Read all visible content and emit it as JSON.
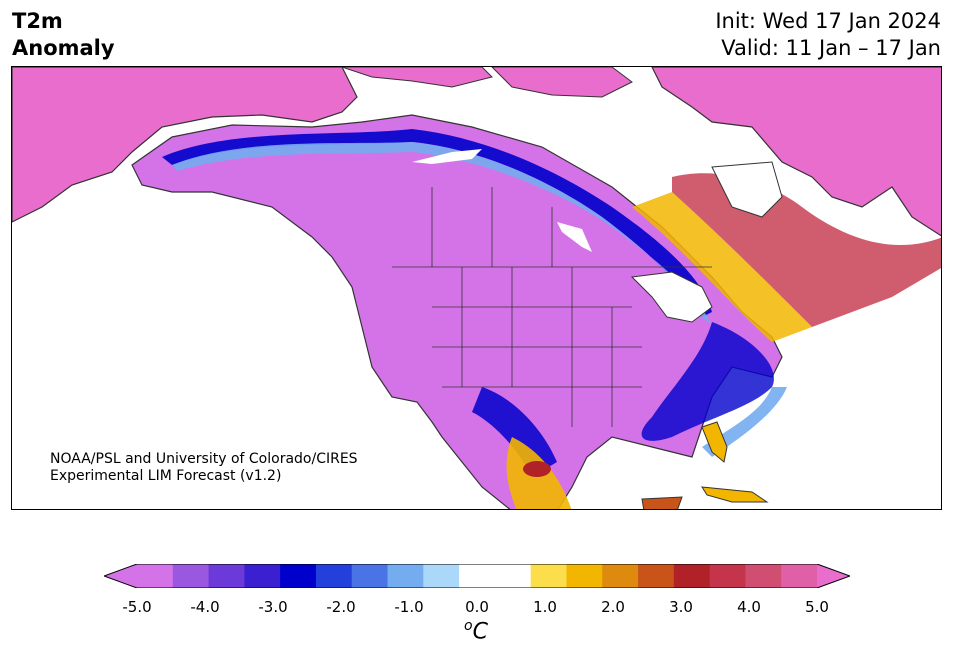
{
  "title": {
    "line1": "T2m",
    "line2": "Anomaly"
  },
  "init_line": "Init: Wed 17 Jan 2024",
  "valid_line": "Valid: 11 Jan – 17 Jan",
  "credit": {
    "line1": "NOAA/PSL and University of Colorado/CIRES",
    "line2": "Experimental LIM Forecast (v1.2)"
  },
  "colorbar": {
    "ticks": [
      "-5.0",
      "-4.0",
      "-3.0",
      "-2.0",
      "-1.0",
      "0.0",
      "1.0",
      "2.0",
      "3.0",
      "4.0",
      "5.0"
    ],
    "unit_base": "C",
    "unit_super": "o",
    "colors": {
      "below_min": "#d473e8",
      "neg": [
        "#d473e8",
        "#9a57e0",
        "#6b3ad8",
        "#3a20d0",
        "#0000cc",
        "#2340dc",
        "#4a74e6",
        "#74acf0",
        "#abd8f8"
      ],
      "zero": "#ffffff",
      "pos": [
        "#fcdd4c",
        "#f2b600",
        "#de8a0e",
        "#c8541a",
        "#b02228",
        "#c4344a",
        "#d04e72",
        "#e060a8"
      ],
      "above_max": "#e86dcc"
    }
  },
  "map_colors": {
    "strong_cold": "#d473e8",
    "strong_warm": "#e86dcc",
    "land_outline": "#333333"
  }
}
